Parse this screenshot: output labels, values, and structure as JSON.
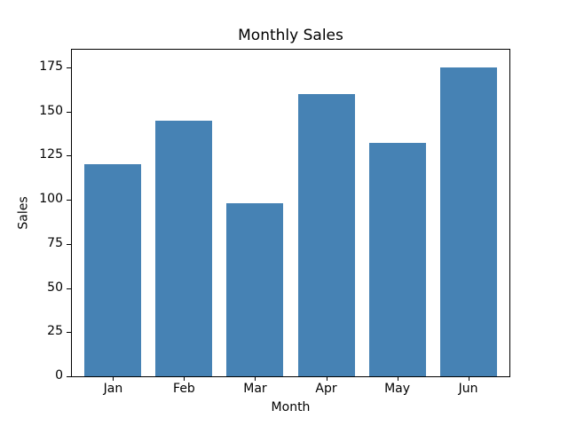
{
  "chart_data": {
    "type": "bar",
    "title": "Monthly Sales",
    "xlabel": "Month",
    "ylabel": "Sales",
    "categories": [
      "Jan",
      "Feb",
      "Mar",
      "Apr",
      "May",
      "Jun"
    ],
    "values": [
      120,
      145,
      98,
      160,
      132,
      175
    ],
    "yticks": [
      0,
      25,
      50,
      75,
      100,
      125,
      150,
      175
    ],
    "ylim": [
      0,
      185
    ],
    "bar_color": "#4682b4",
    "background_color": "#ffffff",
    "spine_color": "#000000",
    "grid": false,
    "legend": false
  }
}
